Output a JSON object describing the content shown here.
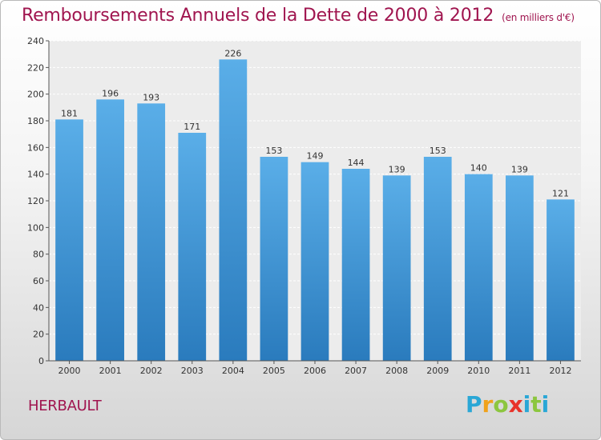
{
  "title": "Remboursements Annuels de la Dette de 2000 à 2012",
  "unit": "(en milliers d'€)",
  "commune": "HERBAULT",
  "logo": {
    "letters": [
      "P",
      "r",
      "o",
      "x",
      "i",
      "t",
      "i"
    ],
    "colors": [
      "#2aa7d6",
      "#f0a21b",
      "#8cc63f",
      "#e8332a",
      "#2aa7d6",
      "#8cc63f",
      "#2aa7d6"
    ]
  },
  "colors": {
    "bar_top": "#5aaee8",
    "bar_bottom": "#2a7bbd",
    "accent": "#a0154f"
  },
  "chart_data": {
    "type": "bar",
    "categories": [
      "2000",
      "2001",
      "2002",
      "2003",
      "2004",
      "2005",
      "2006",
      "2007",
      "2008",
      "2009",
      "2010",
      "2011",
      "2012"
    ],
    "values": [
      181,
      196,
      193,
      171,
      226,
      153,
      149,
      144,
      139,
      153,
      140,
      139,
      121
    ],
    "ylim": [
      0,
      240
    ],
    "yticks": [
      0,
      20,
      40,
      60,
      80,
      100,
      120,
      140,
      160,
      180,
      200,
      220,
      240
    ],
    "grid": true,
    "xlabel": "",
    "ylabel": ""
  }
}
